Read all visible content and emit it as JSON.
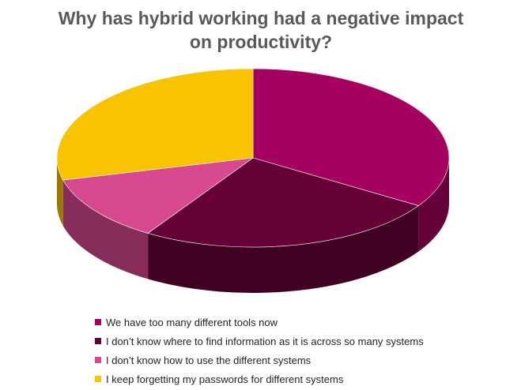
{
  "chart_data": {
    "type": "pie",
    "title": "Why has hybrid working had a negative impact on productivity?",
    "categories": [
      "We have too many different tools now",
      "I don’t know where to find information as it is across so many systems",
      "I don’t know how to use the different systems",
      "I keep forgetting my passwords for different systems"
    ],
    "values": [
      34,
      25,
      12,
      29
    ],
    "colors": [
      "#a5005f",
      "#650037",
      "#d8488f",
      "#f8c300"
    ],
    "style": "3d",
    "legend_position": "bottom"
  }
}
